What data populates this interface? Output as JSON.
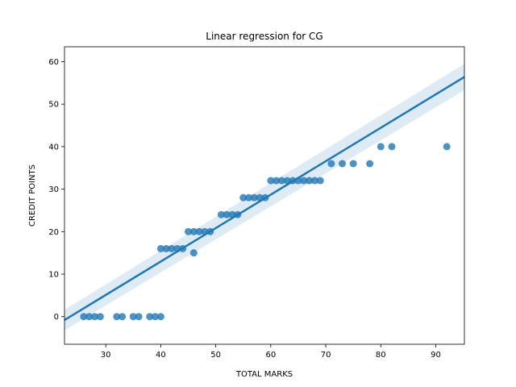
{
  "chart_data": {
    "type": "scatter",
    "title": "Linear regression for CG",
    "xlabel": "TOTAL MARKS",
    "ylabel": "CREDIT POINTS",
    "xlim": [
      22.5,
      95.2
    ],
    "ylim": [
      -6.5,
      63.5
    ],
    "xticks": [
      30,
      40,
      50,
      60,
      70,
      80,
      90
    ],
    "yticks": [
      0,
      10,
      20,
      30,
      40,
      50,
      60
    ],
    "grid": false,
    "point_color": "#1f77b4",
    "points": [
      [
        26,
        0
      ],
      [
        27,
        0
      ],
      [
        28,
        0
      ],
      [
        29,
        0
      ],
      [
        32,
        0
      ],
      [
        33,
        0
      ],
      [
        35,
        0
      ],
      [
        36,
        0
      ],
      [
        38,
        0
      ],
      [
        39,
        0
      ],
      [
        40,
        0
      ],
      [
        40,
        16
      ],
      [
        41,
        16
      ],
      [
        42,
        16
      ],
      [
        43,
        16
      ],
      [
        44,
        16
      ],
      [
        45,
        20
      ],
      [
        46,
        20
      ],
      [
        47,
        20
      ],
      [
        48,
        20
      ],
      [
        49,
        20
      ],
      [
        46,
        15
      ],
      [
        51,
        24
      ],
      [
        52,
        24
      ],
      [
        53,
        24
      ],
      [
        54,
        24
      ],
      [
        55,
        28
      ],
      [
        56,
        28
      ],
      [
        57,
        28
      ],
      [
        58,
        28
      ],
      [
        59,
        28
      ],
      [
        60,
        32
      ],
      [
        61,
        32
      ],
      [
        62,
        32
      ],
      [
        63,
        32
      ],
      [
        64,
        32
      ],
      [
        65,
        32
      ],
      [
        66,
        32
      ],
      [
        67,
        32
      ],
      [
        68,
        32
      ],
      [
        69,
        32
      ],
      [
        71,
        36
      ],
      [
        73,
        36
      ],
      [
        75,
        36
      ],
      [
        78,
        36
      ],
      [
        80,
        40
      ],
      [
        82,
        40
      ],
      [
        92,
        40
      ]
    ],
    "regression": {
      "x_range": [
        22.5,
        95.2
      ],
      "y_range": [
        -0.8,
        56.4
      ],
      "ci_upper_end": [
        95.2,
        59.5
      ],
      "ci_lower_end": [
        95.2,
        53.3
      ],
      "ci_upper_start": [
        22.5,
        1.6
      ],
      "ci_lower_start": [
        22.5,
        -3.2
      ],
      "line_color": "#1f77b4"
    }
  }
}
